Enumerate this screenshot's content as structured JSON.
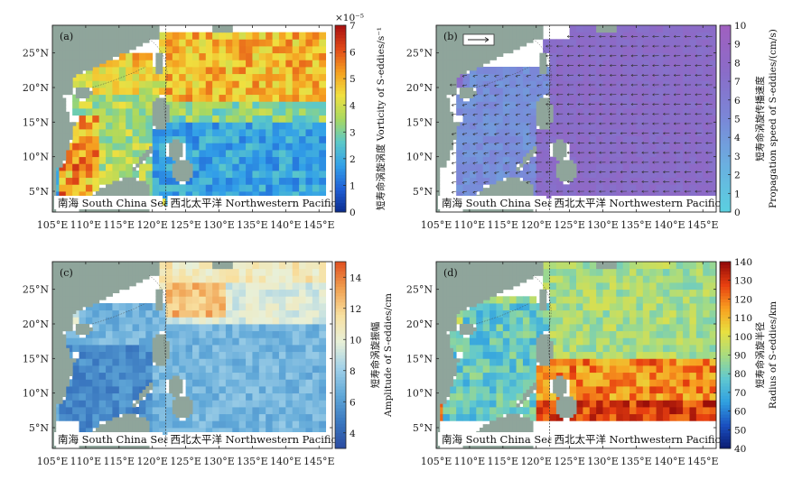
{
  "panels": [
    {
      "label": "(a)",
      "region_left": "南海 South China Sea",
      "region_right": "西北太平洋 Northwestern Pacific",
      "x_ticks": [
        "105°E",
        "110°E",
        "115°E",
        "120°E",
        "125°E",
        "130°E",
        "135°E",
        "140°E",
        "145°E"
      ],
      "y_ticks": [
        "5°N",
        "10°N",
        "15°N",
        "20°N",
        "25°N"
      ],
      "colorbar": {
        "label_cn": "短寿命涡旋涡度",
        "label_en": "Vorticity of S-eddies/s⁻¹",
        "exponent": "×10⁻⁵",
        "ticks": [
          "0",
          "1",
          "2",
          "3",
          "4",
          "5",
          "6",
          "7"
        ],
        "min": 0,
        "max": 7,
        "colormap": [
          "#0a2a8c",
          "#1f5fd6",
          "#32a0e8",
          "#5cc8c8",
          "#a8d860",
          "#f0e040",
          "#f5a020",
          "#e04818",
          "#a81010"
        ]
      }
    },
    {
      "label": "(b)",
      "region_left": "南海 South China Sea",
      "region_right": "西北太平洋 Northwestern Pacific",
      "x_ticks": [
        "105°E",
        "110°E",
        "115°E",
        "120°E",
        "125°E",
        "130°E",
        "135°E",
        "140°E",
        "145°E"
      ],
      "y_ticks": [
        "5°N",
        "10°N",
        "15°N",
        "20°N",
        "25°N"
      ],
      "colorbar": {
        "label_cn": "短寿命涡旋传播速度",
        "label_en": "Propagation speed of S-eddies/(cm/s)",
        "exponent": "",
        "ticks": [
          "0",
          "1",
          "2",
          "3",
          "4",
          "5",
          "6",
          "7",
          "8",
          "9",
          "10"
        ],
        "min": 0,
        "max": 10,
        "colormap": [
          "#5ad0e0",
          "#6ab0e0",
          "#7a88d8",
          "#8a6cc8",
          "#a060c0"
        ]
      }
    },
    {
      "label": "(c)",
      "region_left": "南海 South China Sea",
      "region_right": "西北太平洋 Northwestern Pacific",
      "x_ticks": [
        "105°E",
        "110°E",
        "115°E",
        "120°E",
        "125°E",
        "130°E",
        "135°E",
        "140°E",
        "145°E"
      ],
      "y_ticks": [
        "5°N",
        "10°N",
        "15°N",
        "20°N",
        "25°N"
      ],
      "colorbar": {
        "label_cn": "短寿命涡旋振幅",
        "label_en": "Amplitude of S-eddies/cm",
        "exponent": "",
        "ticks": [
          "4",
          "6",
          "8",
          "10",
          "12",
          "14"
        ],
        "min": 3,
        "max": 15,
        "colormap": [
          "#2a4aa0",
          "#3a78c0",
          "#60a8d8",
          "#a0d0e8",
          "#e8f0d8",
          "#f8e0a0",
          "#f0a050",
          "#e05020"
        ]
      }
    },
    {
      "label": "(d)",
      "region_left": "南海 South China Sea",
      "region_right": "西北太平洋 Northwestern Pacific",
      "x_ticks": [
        "105°E",
        "110°E",
        "115°E",
        "120°E",
        "125°E",
        "130°E",
        "135°E",
        "140°E",
        "145°E"
      ],
      "y_ticks": [
        "5°N",
        "10°N",
        "15°N",
        "20°N",
        "25°N"
      ],
      "colorbar": {
        "label_cn": "短寿命涡旋半径",
        "label_en": "Radius of S-eddies/km",
        "exponent": "",
        "ticks": [
          "40",
          "50",
          "60",
          "70",
          "80",
          "90",
          "100",
          "110",
          "120",
          "130",
          "140"
        ],
        "min": 40,
        "max": 140,
        "colormap": [
          "#0a1a70",
          "#1a50c0",
          "#30a0e0",
          "#60c8d0",
          "#a8dc80",
          "#e8e040",
          "#f8a020",
          "#e84010",
          "#900808"
        ]
      }
    }
  ],
  "chart_data": [
    {
      "type": "heatmap",
      "title": "(a)",
      "zlabel": "Vorticity of S-eddies/s⁻¹",
      "zlim": [
        0,
        7
      ],
      "z_scale": "×10⁻⁵",
      "xlim": [
        105,
        147
      ],
      "ylim": [
        2,
        29
      ],
      "region_means": [
        {
          "region": "South China Sea west (Vietnam coast)",
          "value": 6
        },
        {
          "region": "South China Sea",
          "value": 3.5
        },
        {
          "region": "Northwestern Pacific north of 17°N",
          "value": 5
        },
        {
          "region": "Northwestern Pacific south of 17°N",
          "value": 2
        }
      ]
    },
    {
      "type": "heatmap",
      "title": "(b)",
      "zlabel": "Propagation speed of S-eddies/(cm/s)",
      "zlim": [
        0,
        10
      ],
      "xlim": [
        105,
        147
      ],
      "ylim": [
        2,
        29
      ],
      "region_means": [
        {
          "region": "South China Sea",
          "value": 5
        },
        {
          "region": "Northwestern Pacific",
          "value": 8
        }
      ]
    },
    {
      "type": "heatmap",
      "title": "(c)",
      "zlabel": "Amplitude of S-eddies/cm",
      "zlim": [
        3,
        15
      ],
      "xlim": [
        105,
        147
      ],
      "ylim": [
        2,
        29
      ],
      "region_means": [
        {
          "region": "South China Sea",
          "value": 5.5
        },
        {
          "region": "Northwestern Pacific south of 19°N",
          "value": 7
        },
        {
          "region": "Northwestern Pacific 19-25°N",
          "value": 10
        },
        {
          "region": "Kuroshio 21-26°N 122-130°E",
          "value": 13
        }
      ]
    },
    {
      "type": "heatmap",
      "title": "(d)",
      "zlabel": "Radius of S-eddies/km",
      "zlim": [
        40,
        140
      ],
      "xlim": [
        105,
        147
      ],
      "ylim": [
        2,
        29
      ],
      "region_means": [
        {
          "region": "South China Sea",
          "value": 80
        },
        {
          "region": "Northwestern Pacific north of 16°N",
          "value": 90
        },
        {
          "region": "Northwestern Pacific south of 15°N",
          "value": 120
        }
      ]
    }
  ]
}
